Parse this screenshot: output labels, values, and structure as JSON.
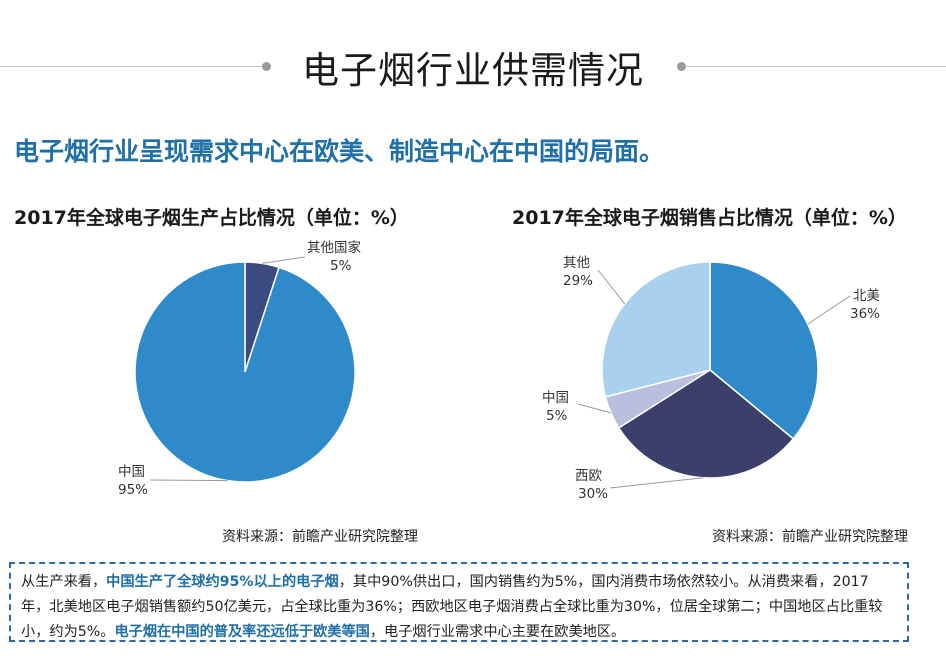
{
  "page_title": "电子烟行业供需情况",
  "subtitle": "电子烟行业呈现需求中心在欧美、制造中心在中国的局面。",
  "colors": {
    "accent": "#1f6fa9",
    "china_production": "#2e8ac8",
    "other_production": "#3b4a80",
    "north_america": "#2e8ac8",
    "western_europe": "#3a3f6c",
    "china_sales": "#b9bfdc",
    "others_sales": "#a9d1ee"
  },
  "chart_data": [
    {
      "type": "pie",
      "title": "2017年全球电子烟生产占比情况（单位：%）",
      "slices": [
        {
          "label": "其他国家",
          "value": 5,
          "value_label": "5%"
        },
        {
          "label": "中国",
          "value": 95,
          "value_label": "95%"
        }
      ],
      "source": "资料来源：前瞻产业研究院整理"
    },
    {
      "type": "pie",
      "title": "2017年全球电子烟销售占比情况（单位：%）",
      "slices": [
        {
          "label": "北美",
          "value": 36,
          "value_label": "36%"
        },
        {
          "label": "西欧",
          "value": 30,
          "value_label": "30%"
        },
        {
          "label": "中国",
          "value": 5,
          "value_label": "5%"
        },
        {
          "label": "其他",
          "value": 29,
          "value_label": "29%"
        }
      ],
      "source": "资料来源：前瞻产业研究院整理"
    }
  ],
  "note": {
    "p1": "从生产来看，",
    "h1": "中国生产了全球约95%以上的电子烟",
    "p2": "，其中90%供出口，国内销售约为5%，国内消费市场依然较小。从消费来看，2017年，北美地区电子烟销售额约50亿美元，占全球比重为36%；西欧地区电子烟消费占全球比重为30%，位居全球第二；中国地区占比重较小，约为5%。",
    "h2": "电子烟在中国的普及率还远低于欧美等国",
    "p3": "，电子烟行业需求中心主要在欧美地区。"
  }
}
